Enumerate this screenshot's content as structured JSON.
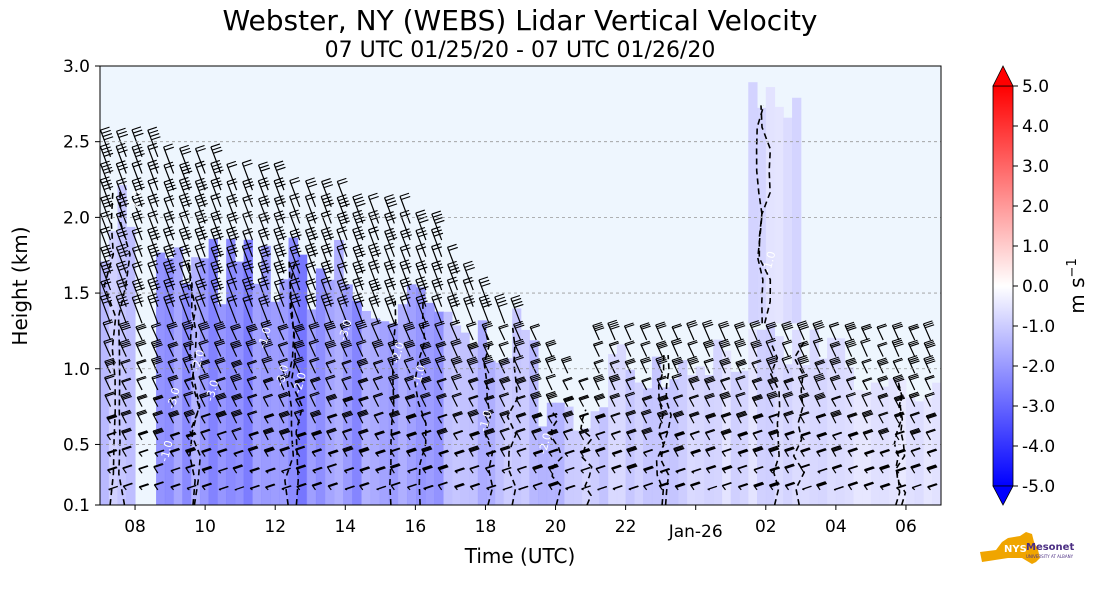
{
  "chart_data": {
    "type": "heatmap",
    "title": "Webster, NY (WEBS) Lidar Vertical Velocity",
    "subtitle": "07 UTC 01/25/20 - 07 UTC 01/26/20",
    "xlabel": "Time (UTC)",
    "ylabel": "Height (km)",
    "x_ticks": [
      "08",
      "10",
      "12",
      "14",
      "16",
      "18",
      "20",
      "22",
      "Jan-26",
      "02",
      "04",
      "06"
    ],
    "x_tick_hours": [
      8,
      10,
      12,
      14,
      16,
      18,
      20,
      22,
      24,
      26,
      28,
      30
    ],
    "x_range_hours": [
      7,
      31
    ],
    "y_ticks": [
      "0.1",
      "0.5",
      "1.0",
      "1.5",
      "2.0",
      "2.5",
      "3.0"
    ],
    "y_tick_values": [
      0.1,
      0.5,
      1.0,
      1.5,
      2.0,
      2.5,
      3.0
    ],
    "ylim": [
      0.1,
      3.0
    ],
    "grid": "horizontal dashed at 0.5 km intervals",
    "colorbar": {
      "label": "m s",
      "label_exponent": "−1",
      "ticks": [
        "5.0",
        "4.0",
        "3.0",
        "2.0",
        "1.0",
        "0.0",
        "-1.0",
        "-2.0",
        "-3.0",
        "-4.0",
        "-5.0"
      ],
      "range": [
        -5.0,
        5.0
      ],
      "colors": {
        "min": "#0000ff",
        "mid": "#ffffff",
        "max": "#ff0000"
      }
    },
    "contour_labels": [
      "-3.0",
      "-3.0",
      "-2.0",
      "-1.0",
      "-3.0",
      "-2.0",
      "-1.0",
      "-3.0",
      "-2.0",
      "-1.0",
      "-1.0",
      "-2.0",
      "-1.0",
      "-2.0"
    ],
    "overlay": "wind barbs and vertical velocity contours",
    "downdraft_regions": [
      {
        "t0": 7.0,
        "t1": 8.0,
        "h0": 0.1,
        "h1": 2.4,
        "w": -1.5
      },
      {
        "t0": 8.6,
        "t1": 11.6,
        "h0": 0.1,
        "h1": 1.9,
        "w": -2.8
      },
      {
        "t0": 11.6,
        "t1": 14.2,
        "h0": 0.1,
        "h1": 1.9,
        "w": -3.0
      },
      {
        "t0": 14.2,
        "t1": 16.8,
        "h0": 0.1,
        "h1": 1.6,
        "w": -2.6
      },
      {
        "t0": 16.8,
        "t1": 19.5,
        "h0": 0.1,
        "h1": 1.4,
        "w": -1.8
      },
      {
        "t0": 19.5,
        "t1": 21.5,
        "h0": 0.1,
        "h1": 0.8,
        "w": -1.6
      },
      {
        "t0": 21.5,
        "t1": 24.0,
        "h0": 0.1,
        "h1": 1.2,
        "w": -1.2
      },
      {
        "t0": 24.0,
        "t1": 28.5,
        "h0": 0.1,
        "h1": 1.3,
        "w": -1.0
      },
      {
        "t0": 25.5,
        "t1": 27.0,
        "h0": 1.3,
        "h1": 2.9,
        "w": -0.9
      },
      {
        "t0": 28.5,
        "t1": 31.0,
        "h0": 0.1,
        "h1": 1.0,
        "w": -0.8
      }
    ]
  },
  "logo": {
    "name": "NYS Mesonet",
    "sub": "UNIVERSITY AT ALBANY"
  }
}
